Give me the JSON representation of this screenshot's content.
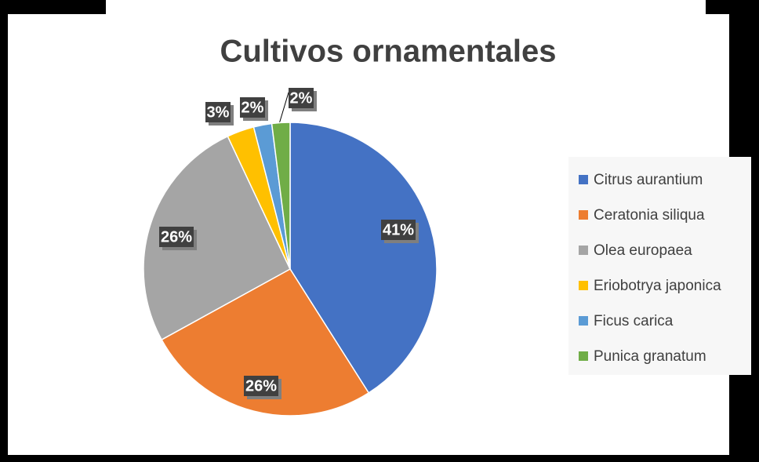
{
  "chart_data": {
    "type": "pie",
    "title": "Cultivos ornamentales",
    "categories": [
      "Citrus aurantium",
      "Ceratonia siliqua",
      "Olea europaea",
      "Eriobotrya japonica",
      "Ficus carica",
      "Punica granatum"
    ],
    "values": [
      41,
      26,
      26,
      3,
      2,
      2
    ],
    "value_labels": [
      "41%",
      "26%",
      "26%",
      "3%",
      "2%",
      "2%"
    ],
    "colors": [
      "#4472c4",
      "#ed7d31",
      "#a5a5a5",
      "#ffc000",
      "#5b9bd5",
      "#70ad47"
    ],
    "legend": "right"
  }
}
